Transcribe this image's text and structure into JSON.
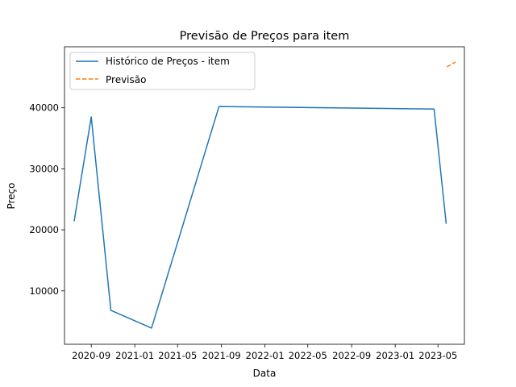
{
  "chart_data": {
    "type": "line",
    "title": "Previsão de Preços para item",
    "xlabel": "Data",
    "ylabel": "Preço",
    "xlim": [
      "2020-06-18",
      "2023-07-14"
    ],
    "ylim": [
      1250,
      50000
    ],
    "x_ticks": [
      "2020-09-01",
      "2021-01-01",
      "2021-05-01",
      "2021-09-01",
      "2022-01-01",
      "2022-05-01",
      "2022-09-01",
      "2023-01-01",
      "2023-05-01"
    ],
    "x_tick_labels": [
      "2020-09",
      "2021-01",
      "2021-05",
      "2021-09",
      "2022-01",
      "2022-05",
      "2022-09",
      "2023-01",
      "2023-05"
    ],
    "y_ticks": [
      10000,
      20000,
      30000,
      40000
    ],
    "y_tick_labels": [
      "10000",
      "20000",
      "30000",
      "40000"
    ],
    "grid": false,
    "legend_position": "top-left",
    "series": [
      {
        "name": "Histórico de Preços - item",
        "color": "#1f77b4",
        "style": "solid",
        "x": [
          "2020-07-15",
          "2020-09-01",
          "2020-10-26",
          "2021-02-17",
          "2021-08-25",
          "2023-04-20",
          "2023-05-24"
        ],
        "y": [
          21400,
          38500,
          6800,
          3900,
          40200,
          39800,
          21000
        ]
      },
      {
        "name": "Previsão",
        "color": "#ff7f0e",
        "style": "dashed",
        "x": [
          "2023-05-26",
          "2023-06-19"
        ],
        "y": [
          46700,
          47500
        ]
      }
    ]
  }
}
